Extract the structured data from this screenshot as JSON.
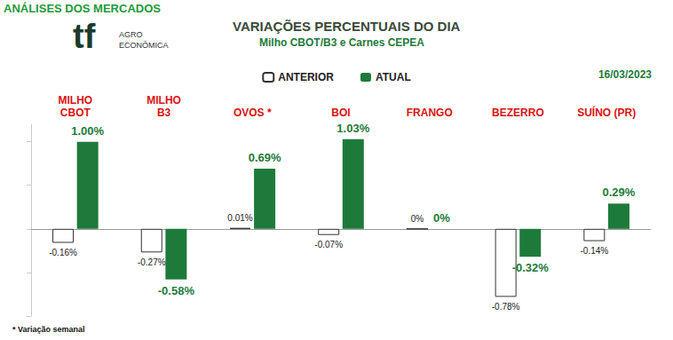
{
  "chart_data": {
    "type": "bar",
    "title": "VARIAÇÕES PERCENTUAIS DO DIA",
    "subtitle": "Milho CBOT/B3 e Carnes CEPEA",
    "date": "16/03/2023",
    "footnote": "* Variação semanal",
    "annotations": [
      "ANÁLISES DOS MERCADOS",
      "tf",
      "AGRO",
      "ECONÔMICA"
    ],
    "categories": [
      "MILHO\nCBOT",
      "MILHO\nB3",
      "OVOS *",
      "BOI",
      "FRANGO",
      "BEZERRO",
      "SUÍNO (PR)"
    ],
    "series": [
      {
        "name": "ANTERIOR",
        "color": "#ffffff",
        "values": [
          -0.16,
          -0.27,
          0.01,
          -0.07,
          0,
          -0.78,
          -0.14
        ],
        "value_labels": [
          "-0.16%",
          "-0.27%",
          "0.01%",
          "-0.07%",
          "0%",
          "-0.78%",
          "-0.14%"
        ]
      },
      {
        "name": "ATUAL",
        "color": "#1e7a3a",
        "values": [
          1.0,
          -0.58,
          0.69,
          1.03,
          0,
          -0.32,
          0.29
        ],
        "value_labels": [
          "1.00%",
          "-0.58%",
          "0.69%",
          "1.03%",
          "0%",
          "-0.32%",
          "0.29%"
        ]
      }
    ],
    "ylim": [
      -1,
      1.2
    ],
    "yticks": [
      -1,
      -0.5,
      0,
      0.5,
      1
    ],
    "grid": false,
    "legend": "top",
    "data_labels": true,
    "tick_labels": "x"
  }
}
